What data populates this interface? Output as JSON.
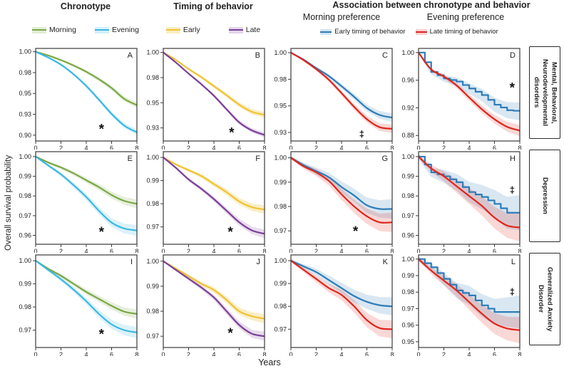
{
  "headers": {
    "chronotype": "Chronotype",
    "timing": "Timing of behavior",
    "association": "Association between chronotype  and behavior",
    "morning_preference": "Morning preference",
    "evening_preference": "Evening preference"
  },
  "legends": {
    "chronotype": [
      {
        "label": "Morning",
        "color": "morning"
      },
      {
        "label": "Evening",
        "color": "evening"
      }
    ],
    "timing": [
      {
        "label": "Early",
        "color": "early"
      },
      {
        "label": "Late",
        "color": "late"
      }
    ],
    "association": [
      {
        "label": "Early timing of behavior",
        "color": "early_timing"
      },
      {
        "label": "Late timing of behavior",
        "color": "late_timing"
      }
    ]
  },
  "row_labels": [
    "Mental, Behavioral, Neurodevelopmental disorders",
    "Depression",
    "Generalized Anxiety Disorder"
  ],
  "colors": {
    "morning": "#79a842",
    "evening": "#3ab7e6",
    "early": "#f0c233",
    "late": "#7c3f98",
    "early_timing": "#2d7cb8",
    "late_timing": "#e0251c",
    "box_border": "#3a3a3a",
    "text": "#222222"
  },
  "chart_data": {
    "type": "line",
    "title": "Association between chronotype and behavior — survival curves",
    "xlabel": "Years",
    "ylabel": "Overall survival probability",
    "x": [
      0,
      1,
      2,
      3,
      4,
      5,
      6,
      7,
      8
    ],
    "xticks": [
      0,
      2,
      4,
      6,
      8
    ],
    "xlim": [
      0,
      8
    ],
    "panels": [
      {
        "label": "A",
        "ymin": 0.893,
        "ymax": 1.004,
        "yticks": [
          {
            "v": 1.0,
            "t": "1.00"
          },
          {
            "v": 0.975,
            "t": "0.98"
          },
          {
            "v": 0.95,
            "t": "0.95"
          },
          {
            "v": 0.925,
            "t": "0.93"
          },
          {
            "v": 0.9,
            "t": "0.90"
          }
        ],
        "series": [
          {
            "name": "Morning",
            "color": "morning",
            "band": 0.0035,
            "y": [
              1.0,
              0.9955,
              0.99,
              0.9835,
              0.976,
              0.967,
              0.9565,
              0.9435,
              0.936
            ]
          },
          {
            "name": "Evening",
            "color": "evening",
            "band": 0.0035,
            "y": [
              1.0,
              0.993,
              0.9845,
              0.973,
              0.959,
              0.9425,
              0.9255,
              0.9115,
              0.9035
            ]
          }
        ],
        "sig": {
          "s": "*",
          "x": 5.2,
          "y": 0.908
        }
      },
      {
        "label": "B",
        "ymin": 0.912,
        "ymax": 1.004,
        "yticks": [
          {
            "v": 1.0,
            "t": "1.00"
          },
          {
            "v": 0.975,
            "t": "0.98"
          },
          {
            "v": 0.95,
            "t": "0.95"
          },
          {
            "v": 0.925,
            "t": "0.93"
          }
        ],
        "series": [
          {
            "name": "Early",
            "color": "early",
            "band": 0.003,
            "y": [
              1.0,
              0.9925,
              0.9835,
              0.9755,
              0.9665,
              0.9575,
              0.948,
              0.941,
              0.938
            ]
          },
          {
            "name": "Late",
            "color": "late",
            "band": 0.0025,
            "y": [
              1.0,
              0.99,
              0.979,
              0.9685,
              0.957,
              0.9435,
              0.9305,
              0.9225,
              0.918
            ]
          }
        ],
        "sig": {
          "s": "*",
          "x": 5.4,
          "y": 0.921
        }
      },
      {
        "label": "C",
        "ymin": 0.917,
        "ymax": 1.004,
        "yticks": [
          {
            "v": 1.0,
            "t": "1.00"
          },
          {
            "v": 0.975,
            "t": "0.98"
          },
          {
            "v": 0.95,
            "t": "0.95"
          },
          {
            "v": 0.925,
            "t": "0.93"
          }
        ],
        "series": [
          {
            "name": "Early timing of behavior",
            "color": "early_timing",
            "band": 0.004,
            "y": [
              1.0,
              0.9935,
              0.9855,
              0.978,
              0.9685,
              0.9585,
              0.948,
              0.9415,
              0.939
            ]
          },
          {
            "name": "Late timing of behavior",
            "color": "late_timing",
            "band": 0.004,
            "y": [
              1.0,
              0.993,
              0.9845,
              0.9745,
              0.962,
              0.949,
              0.9375,
              0.93,
              0.9285
            ]
          }
        ],
        "sig": {
          "s": "‡",
          "x": 5.6,
          "y": 0.9235
        }
      },
      {
        "label": "D",
        "ymin": 0.872,
        "ymax": 1.006,
        "yticks": [
          {
            "v": 1.0,
            "t": "1.00"
          },
          {
            "v": 0.96,
            "t": "0.96"
          },
          {
            "v": 0.92,
            "t": "0.92"
          },
          {
            "v": 0.88,
            "t": "0.88"
          }
        ],
        "series": [
          {
            "name": "Early timing of behavior",
            "color": "early_timing",
            "band": 0.013,
            "step": true,
            "y": [
              1.0,
              0.972,
              0.9625,
              0.958,
              0.948,
              0.9385,
              0.9245,
              0.9165,
              0.915
            ]
          },
          {
            "name": "Late timing of behavior",
            "color": "late_timing",
            "band": 0.008,
            "y": [
              1.0,
              0.9755,
              0.9655,
              0.9525,
              0.935,
              0.918,
              0.9035,
              0.8925,
              0.887
            ]
          }
        ],
        "sig": {
          "s": "*",
          "x": 7.4,
          "y": 0.95
        }
      },
      {
        "label": "E",
        "ymin": 0.9555,
        "ymax": 1.0025,
        "yticks": [
          {
            "v": 1.0,
            "t": "1.00"
          },
          {
            "v": 0.99,
            "t": "0.99"
          },
          {
            "v": 0.98,
            "t": "0.98"
          },
          {
            "v": 0.97,
            "t": "0.97"
          },
          {
            "v": 0.96,
            "t": "0.96"
          }
        ],
        "series": [
          {
            "name": "Morning",
            "color": "morning",
            "band": 0.0022,
            "y": [
              1.0,
              0.997,
              0.9945,
              0.9915,
              0.988,
              0.9845,
              0.9805,
              0.9775,
              0.976
            ]
          },
          {
            "name": "Evening",
            "color": "evening",
            "band": 0.0028,
            "y": [
              1.0,
              0.9955,
              0.991,
              0.9855,
              0.9795,
              0.9725,
              0.9665,
              0.9635,
              0.9625
            ]
          }
        ],
        "sig": {
          "s": "*",
          "x": 5.2,
          "y": 0.962
        }
      },
      {
        "label": "F",
        "ymin": 0.9625,
        "ymax": 1.0025,
        "yticks": [
          {
            "v": 1.0,
            "t": "1.00"
          },
          {
            "v": 0.99,
            "t": "0.99"
          },
          {
            "v": 0.98,
            "t": "0.98"
          },
          {
            "v": 0.97,
            "t": "0.97"
          }
        ],
        "series": [
          {
            "name": "Early",
            "color": "early",
            "band": 0.0018,
            "y": [
              1.0,
              0.997,
              0.9945,
              0.992,
              0.9885,
              0.985,
              0.981,
              0.9785,
              0.9775
            ]
          },
          {
            "name": "Late",
            "color": "late",
            "band": 0.0018,
            "y": [
              1.0,
              0.9955,
              0.9905,
              0.9865,
              0.982,
              0.977,
              0.972,
              0.9685,
              0.967
            ]
          }
        ],
        "sig": {
          "s": "*",
          "x": 5.3,
          "y": 0.968
        }
      },
      {
        "label": "G",
        "ymin": 0.9645,
        "ymax": 1.0025,
        "yticks": [
          {
            "v": 1.0,
            "t": "1.00"
          },
          {
            "v": 0.99,
            "t": "0.99"
          },
          {
            "v": 0.98,
            "t": "0.98"
          },
          {
            "v": 0.97,
            "t": "0.97"
          }
        ],
        "series": [
          {
            "name": "Early timing of behavior",
            "color": "early_timing",
            "band": 0.004,
            "y": [
              1.0,
              0.997,
              0.9945,
              0.992,
              0.988,
              0.9845,
              0.9805,
              0.979,
              0.979
            ]
          },
          {
            "name": "Late timing of behavior",
            "color": "late_timing",
            "band": 0.004,
            "y": [
              1.0,
              0.9965,
              0.994,
              0.9905,
              0.985,
              0.98,
              0.976,
              0.9735,
              0.9735
            ]
          }
        ],
        "sig": {
          "s": "*",
          "x": 5.1,
          "y": 0.97
        }
      },
      {
        "label": "H",
        "ymin": 0.9555,
        "ymax": 1.0025,
        "yticks": [
          {
            "v": 1.0,
            "t": "1.00"
          },
          {
            "v": 0.99,
            "t": "0.99"
          },
          {
            "v": 0.98,
            "t": "0.98"
          },
          {
            "v": 0.97,
            "t": "0.97"
          },
          {
            "v": 0.96,
            "t": "0.96"
          }
        ],
        "series": [
          {
            "name": "Early timing of behavior",
            "color": "early_timing",
            "band": 0.009,
            "step": true,
            "y": [
              1.0,
              0.992,
              0.99,
              0.987,
              0.982,
              0.9795,
              0.976,
              0.9715,
              0.9715
            ]
          },
          {
            "name": "Late timing of behavior",
            "color": "late_timing",
            "band": 0.007,
            "y": [
              1.0,
              0.994,
              0.99,
              0.985,
              0.98,
              0.975,
              0.969,
              0.965,
              0.964
            ]
          }
        ],
        "sig": {
          "s": "‡",
          "x": 7.4,
          "y": 0.983
        }
      },
      {
        "label": "I",
        "ymin": 0.9625,
        "ymax": 1.0025,
        "yticks": [
          {
            "v": 1.0,
            "t": "1.00"
          },
          {
            "v": 0.99,
            "t": "0.99"
          },
          {
            "v": 0.98,
            "t": "0.98"
          },
          {
            "v": 0.97,
            "t": "0.97"
          }
        ],
        "series": [
          {
            "name": "Morning",
            "color": "morning",
            "band": 0.002,
            "y": [
              1.0,
              0.9965,
              0.9935,
              0.99,
              0.9865,
              0.9835,
              0.9805,
              0.978,
              0.977
            ]
          },
          {
            "name": "Evening",
            "color": "evening",
            "band": 0.0025,
            "y": [
              1.0,
              0.996,
              0.992,
              0.9875,
              0.9825,
              0.977,
              0.9725,
              0.97,
              0.969
            ]
          }
        ],
        "sig": {
          "s": "*",
          "x": 5.2,
          "y": 0.9685
        }
      },
      {
        "label": "J",
        "ymin": 0.9655,
        "ymax": 1.0025,
        "yticks": [
          {
            "v": 1.0,
            "t": "1.00"
          },
          {
            "v": 0.99,
            "t": "0.99"
          },
          {
            "v": 0.98,
            "t": "0.98"
          },
          {
            "v": 0.97,
            "t": "0.97"
          }
        ],
        "series": [
          {
            "name": "Early",
            "color": "early",
            "band": 0.0018,
            "y": [
              1.0,
              0.997,
              0.994,
              0.991,
              0.9885,
              0.9845,
              0.98,
              0.978,
              0.977
            ]
          },
          {
            "name": "Late",
            "color": "late",
            "band": 0.0018,
            "y": [
              1.0,
              0.9965,
              0.993,
              0.9895,
              0.9855,
              0.98,
              0.9745,
              0.971,
              0.97
            ]
          }
        ],
        "sig": {
          "s": "*",
          "x": 5.3,
          "y": 0.9715
        }
      },
      {
        "label": "K",
        "ymin": 0.962,
        "ymax": 1.0025,
        "yticks": [
          {
            "v": 1.0,
            "t": "1.00"
          },
          {
            "v": 0.99,
            "t": "0.99"
          },
          {
            "v": 0.98,
            "t": "0.98"
          },
          {
            "v": 0.97,
            "t": "0.97"
          }
        ],
        "series": [
          {
            "name": "Early timing of behavior",
            "color": "early_timing",
            "band": 0.004,
            "y": [
              1.0,
              0.9975,
              0.995,
              0.9915,
              0.988,
              0.9845,
              0.982,
              0.9805,
              0.98
            ]
          },
          {
            "name": "Late timing of behavior",
            "color": "late_timing",
            "band": 0.004,
            "y": [
              1.0,
              0.996,
              0.992,
              0.988,
              0.985,
              0.98,
              0.974,
              0.9705,
              0.97
            ]
          }
        ],
        "sig": null
      },
      {
        "label": "L",
        "ymin": 0.9465,
        "ymax": 1.0025,
        "yticks": [
          {
            "v": 1.0,
            "t": "1.00"
          },
          {
            "v": 0.99,
            "t": "0.99"
          },
          {
            "v": 0.98,
            "t": "0.98"
          },
          {
            "v": 0.97,
            "t": "0.97"
          },
          {
            "v": 0.96,
            "t": "0.96"
          },
          {
            "v": 0.95,
            "t": "0.95"
          }
        ],
        "series": [
          {
            "name": "Early timing of behavior",
            "color": "early_timing",
            "band": 0.01,
            "step": true,
            "y": [
              1.0,
              0.995,
              0.988,
              0.981,
              0.978,
              0.972,
              0.968,
              0.968,
              0.968
            ]
          },
          {
            "name": "Late timing of behavior",
            "color": "late_timing",
            "band": 0.008,
            "y": [
              1.0,
              0.993,
              0.987,
              0.981,
              0.974,
              0.967,
              0.961,
              0.958,
              0.957
            ]
          }
        ],
        "sig": {
          "s": "‡",
          "x": 7.4,
          "y": 0.98
        }
      }
    ]
  }
}
